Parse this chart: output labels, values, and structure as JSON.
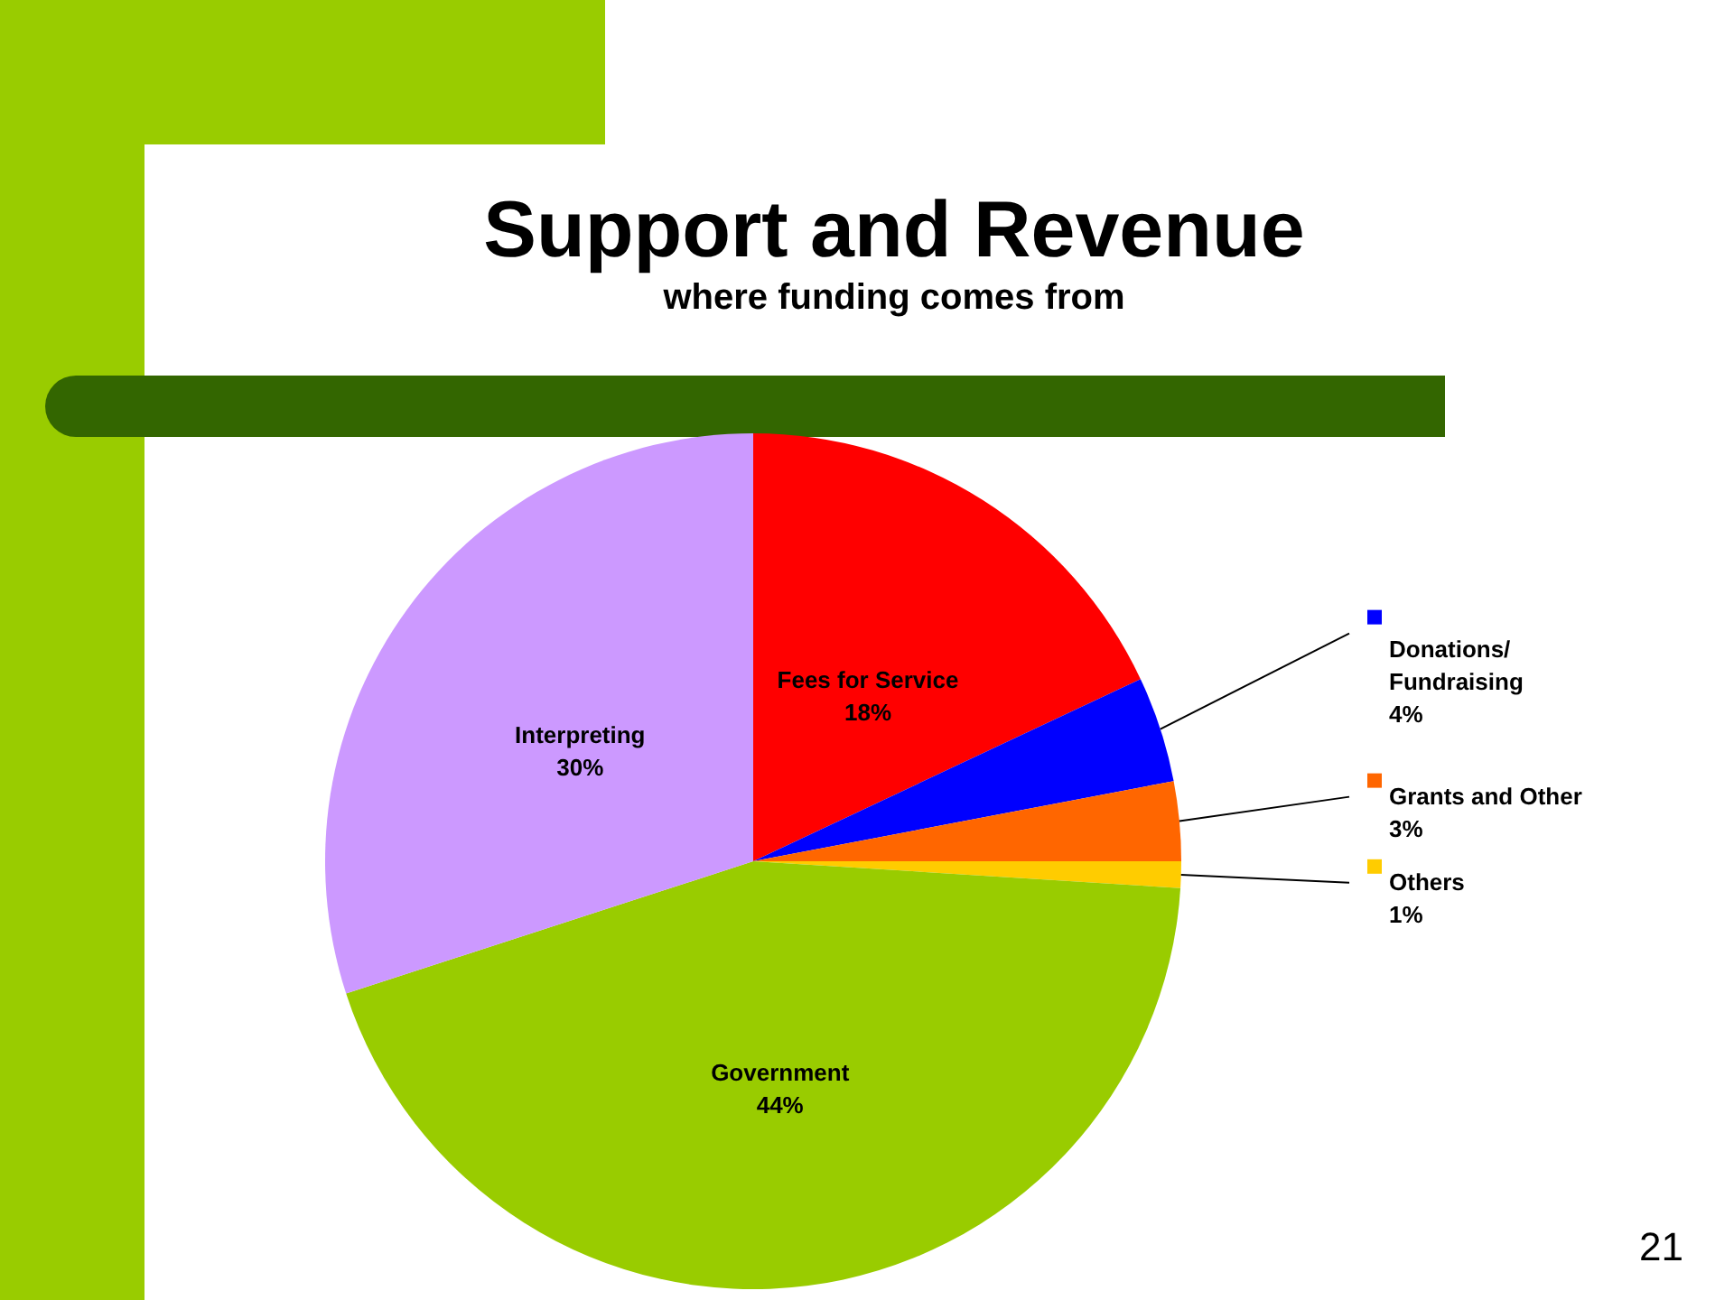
{
  "chart_data": {
    "type": "pie",
    "title": "Support and Revenue",
    "subtitle": "where funding comes from",
    "categories": [
      "Fees for Service",
      "Donations/ Fundraising",
      "Grants and Other",
      "Others",
      "Government",
      "Interpreting"
    ],
    "values": [
      18,
      4,
      3,
      1,
      44,
      30
    ],
    "value_labels": [
      "18%",
      "4%",
      "3%",
      "1%",
      "44%",
      "30%"
    ],
    "colors": [
      "#ff0000",
      "#0000ff",
      "#ff6600",
      "#ffcc00",
      "#99cc00",
      "#cc99ff"
    ],
    "legend": "right",
    "annotations": [
      "21"
    ]
  }
}
